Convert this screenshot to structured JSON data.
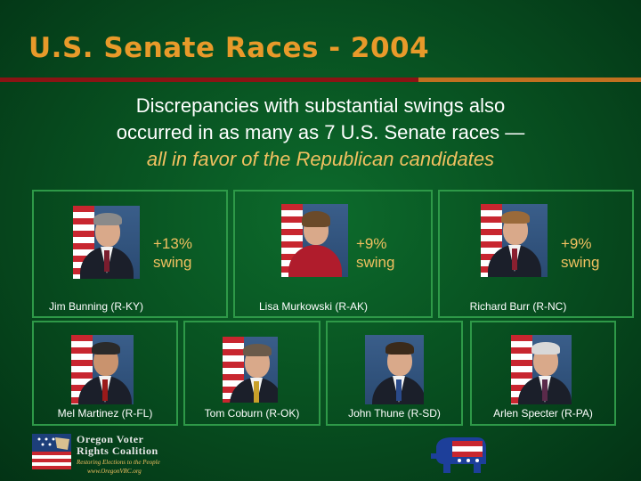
{
  "title": "U.S. Senate Races - 2004",
  "subtitle": {
    "line1": "Discrepancies with substantial swings also",
    "line2": "occurred in as many as 7 U.S. Senate races —",
    "line3": "all in favor of the Republican candidates"
  },
  "senators": [
    {
      "name": "Jim Bunning (R-KY)",
      "swing_value": "+13%",
      "swing_word": "swing"
    },
    {
      "name": "Lisa Murkowski (R-AK)",
      "swing_value": "+9%",
      "swing_word": "swing"
    },
    {
      "name": "Richard Burr (R-NC)",
      "swing_value": "+9%",
      "swing_word": "swing"
    },
    {
      "name": "Mel Martinez (R-FL)"
    },
    {
      "name": "Tom Coburn (R-OK)"
    },
    {
      "name": "John Thune (R-SD)"
    },
    {
      "name": "Arlen Specter (R-PA)"
    }
  ],
  "footer": {
    "org_line1": "Oregon Voter",
    "org_line2": "Rights Coalition",
    "tagline": "Restoring Elections to the People",
    "url": "www.OregonVRC.org"
  },
  "colors": {
    "title": "#e89a2a",
    "accent": "#f0c060",
    "background": "#074d1f",
    "panel_border": "#2e9948"
  }
}
